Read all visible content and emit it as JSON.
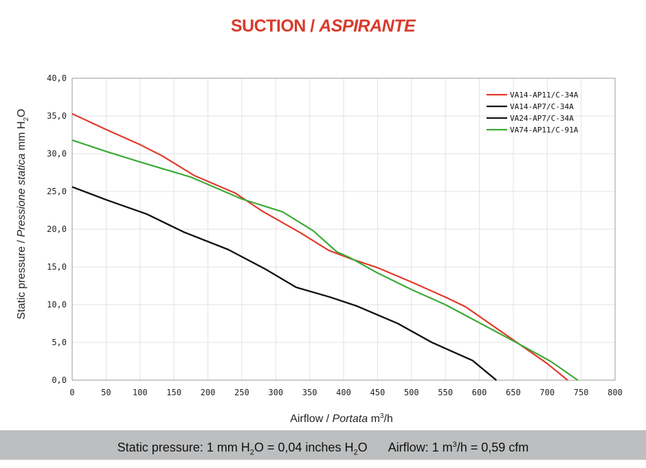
{
  "title": {
    "main": "SUCTION / ",
    "italic": "ASPIRANTE"
  },
  "footer": {
    "pressure_a": "Static pressure: 1 mm H",
    "pressure_b": "O = 0,04 inches H",
    "pressure_c": "O",
    "airflow_a": "Airflow: 1 m",
    "airflow_b": "/h = 0,59 cfm",
    "sub2": "2",
    "sup3": "3"
  },
  "chart_data": {
    "type": "line",
    "title": "SUCTION / ASPIRANTE",
    "xlabel": "Airflow / Portata m³/h",
    "xlabel_parts": {
      "a": "Airflow",
      "sep": " / ",
      "b": "Portata",
      "unit_a": " m",
      "unit_sup": "3",
      "unit_b": "/h"
    },
    "ylabel": "Static pressure / Pressione statica mm H2O",
    "ylabel_parts": {
      "a": "Static pressure",
      "sep": " / ",
      "b": "Pressione statica",
      "unit_a": " mm H",
      "unit_sub": "2",
      "unit_b": "O"
    },
    "xlim": [
      0,
      800
    ],
    "ylim": [
      0,
      40
    ],
    "xticks": [
      0,
      50,
      100,
      150,
      200,
      250,
      300,
      350,
      400,
      450,
      500,
      550,
      600,
      650,
      700,
      750,
      800
    ],
    "yticks": [
      "0,0",
      "5,0",
      "10,0",
      "15,0",
      "20,0",
      "25,0",
      "30,0",
      "35,0",
      "40,0"
    ],
    "ytick_values": [
      0,
      5,
      10,
      15,
      20,
      25,
      30,
      35,
      40
    ],
    "grid": true,
    "legend_position": "top-right",
    "series": [
      {
        "name": "VA14-AP11/C-34A",
        "color": "#e03a2a",
        "points": [
          [
            0,
            35.3
          ],
          [
            50,
            33.2
          ],
          [
            100,
            31.2
          ],
          [
            133,
            29.7
          ],
          [
            180,
            27.1
          ],
          [
            240,
            24.8
          ],
          [
            280,
            22.4
          ],
          [
            335,
            19.6
          ],
          [
            378,
            17.2
          ],
          [
            410,
            16.1
          ],
          [
            450,
            14.9
          ],
          [
            500,
            13.0
          ],
          [
            550,
            11.0
          ],
          [
            580,
            9.7
          ],
          [
            620,
            7.2
          ],
          [
            660,
            4.7
          ],
          [
            700,
            2.2
          ],
          [
            730,
            0
          ]
        ]
      },
      {
        "name": "VA14-AP7/C-34A",
        "color": "#111111",
        "points": [
          [
            0,
            25.6
          ],
          [
            50,
            23.9
          ],
          [
            110,
            22.0
          ],
          [
            165,
            19.6
          ],
          [
            230,
            17.3
          ],
          [
            285,
            14.7
          ],
          [
            330,
            12.3
          ],
          [
            380,
            11.0
          ],
          [
            420,
            9.8
          ],
          [
            480,
            7.5
          ],
          [
            530,
            5.0
          ],
          [
            590,
            2.6
          ],
          [
            625,
            0
          ]
        ]
      },
      {
        "name": "VA24-AP7/C-34A",
        "color": "#111111",
        "points": [
          [
            0,
            25.6
          ],
          [
            50,
            23.9
          ],
          [
            110,
            22.0
          ],
          [
            165,
            19.6
          ],
          [
            230,
            17.3
          ],
          [
            285,
            14.7
          ],
          [
            330,
            12.3
          ],
          [
            380,
            11.0
          ],
          [
            420,
            9.8
          ],
          [
            480,
            7.5
          ],
          [
            530,
            5.0
          ],
          [
            590,
            2.6
          ],
          [
            625,
            0
          ]
        ]
      },
      {
        "name": "VA74-AP11/C-91A",
        "color": "#3aaa35",
        "points": [
          [
            0,
            31.8
          ],
          [
            50,
            30.3
          ],
          [
            100,
            28.9
          ],
          [
            175,
            26.9
          ],
          [
            250,
            24.0
          ],
          [
            310,
            22.3
          ],
          [
            355,
            19.8
          ],
          [
            390,
            17.0
          ],
          [
            410,
            16.2
          ],
          [
            450,
            14.2
          ],
          [
            500,
            12.0
          ],
          [
            550,
            10.0
          ],
          [
            600,
            7.6
          ],
          [
            650,
            5.2
          ],
          [
            705,
            2.5
          ],
          [
            745,
            0
          ]
        ]
      }
    ]
  }
}
